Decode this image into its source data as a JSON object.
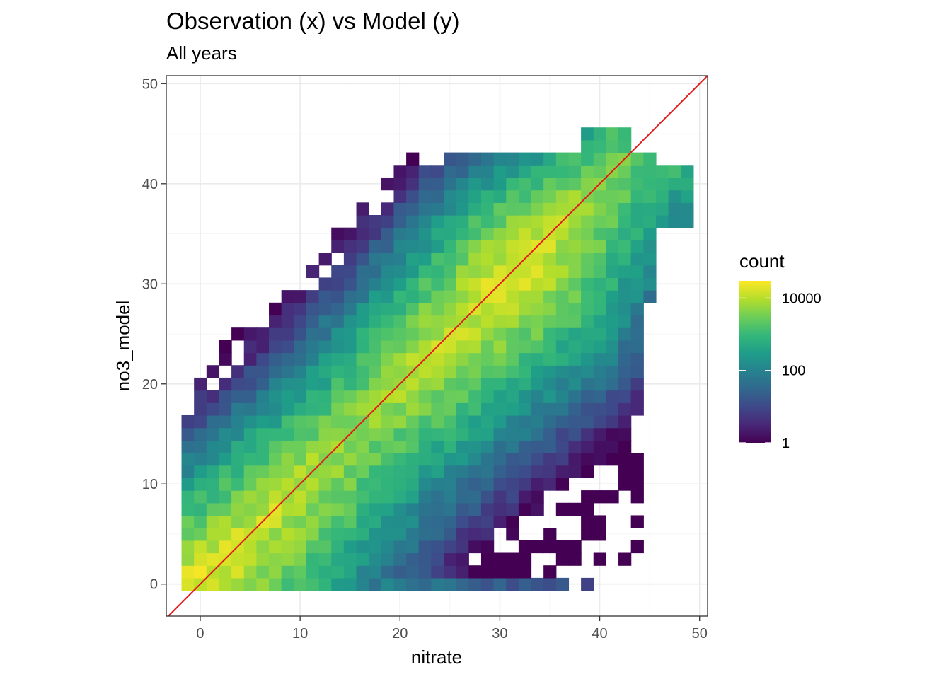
{
  "chart_data": {
    "type": "heatmap",
    "title": "Observation (x) vs Model (y)",
    "subtitle": "All years",
    "xlabel": "nitrate",
    "ylabel": "no3_model",
    "xlim": [
      -3.4,
      50.8
    ],
    "ylim": [
      -3.2,
      50.8
    ],
    "x_ticks": [
      0,
      10,
      20,
      30,
      40,
      50
    ],
    "y_ticks": [
      0,
      10,
      20,
      30,
      40,
      50
    ],
    "grid": true,
    "bin_width": 1.25,
    "identity_line": {
      "slope": 1,
      "intercept": 0,
      "color": "#e31a1c"
    },
    "legend": {
      "title": "count",
      "scale": "log10",
      "min": 1,
      "max": 30000,
      "breaks": [
        1,
        100,
        10000
      ],
      "break_labels": [
        "1",
        "100",
        "10000"
      ],
      "position": "right",
      "palette": [
        "#440154",
        "#482878",
        "#3e4989",
        "#31688e",
        "#26828e",
        "#1f9e89",
        "#35b779",
        "#6ece58",
        "#b5de2b",
        "#fde725"
      ]
    },
    "density_model": {
      "description": "Approximate 2D histogram read from the figure (log10 count per bin)",
      "ridge_points": [
        [
          0,
          0,
          4.3
        ],
        [
          16,
          16,
          3.7
        ],
        [
          32,
          32,
          4.3
        ],
        [
          42,
          42,
          3.4
        ]
      ],
      "spread_above_diagonal": 7,
      "spread_below_diagonal": 9,
      "bottom_row_level": 2.8
    }
  }
}
